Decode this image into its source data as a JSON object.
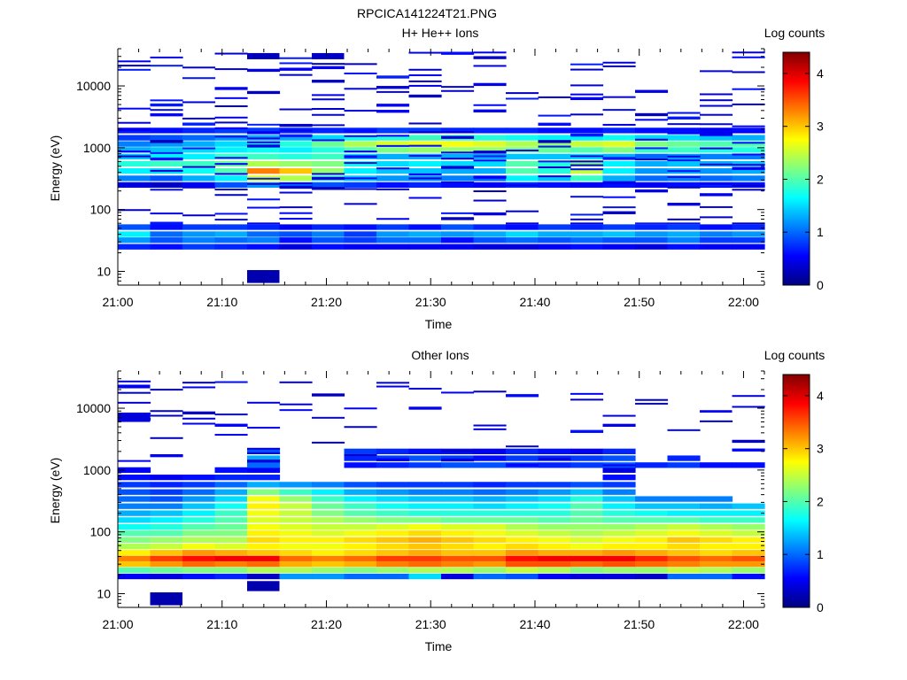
{
  "figure_title": "RPCICA141224T21.PNG",
  "colormap_stops": [
    "#000080",
    "#0000ff",
    "#0080ff",
    "#00ffff",
    "#80ff80",
    "#ffff00",
    "#ff8000",
    "#ff0000",
    "#800000"
  ],
  "chart_data": [
    {
      "type": "heatmap",
      "title": "H+ He++ Ions",
      "xlabel": "Time",
      "ylabel": "Energy (eV)",
      "colorbar_label": "Log counts",
      "x_ticks": [
        "21:00",
        "21:10",
        "21:20",
        "21:30",
        "21:40",
        "21:50",
        "22:00"
      ],
      "y_ticks": [
        "10",
        "100",
        "1000",
        "10000"
      ],
      "colorbar_ticks": [
        "0",
        "1",
        "2",
        "3",
        "4"
      ],
      "y_scale": "log",
      "ylim": [
        6,
        40000
      ],
      "xlim_minutes": [
        0,
        62
      ],
      "clim": [
        0,
        4.4
      ],
      "grid": false,
      "time_bins": 20,
      "bands": [
        {
          "e": 25,
          "v": [
            0.7,
            0.6,
            0.8,
            0.7,
            0.6,
            0.4,
            0.6,
            0.5,
            0.5,
            0.5,
            0.5,
            0.4,
            0.4,
            0.5,
            0.6,
            0.5,
            0.4,
            0.6,
            0.5,
            0.5
          ]
        },
        {
          "e": 32,
          "v": [
            1.2,
            0.9,
            1.1,
            1.0,
            1.1,
            0.6,
            0.9,
            0.8,
            1.0,
            1.0,
            0.6,
            0.9,
            1.0,
            0.9,
            1.0,
            0.9,
            0.9,
            1.1,
            0.8,
            0.8
          ]
        },
        {
          "e": 40,
          "v": [
            1.6,
            1.0,
            1.2,
            1.3,
            1.0,
            0.9,
            1.1,
            0.8,
            1.2,
            1.3,
            1.2,
            1.3,
            1.5,
            1.3,
            1.3,
            1.4,
            1.2,
            1.3,
            1.1,
            1.2
          ]
        },
        {
          "e": 52,
          "v": [
            0.9,
            0.6,
            0.8,
            0.8,
            0.7,
            0.5,
            0.7,
            0.6,
            0.8,
            0.6,
            0.9,
            0.7,
            0.6,
            0.8,
            0.7,
            0.8,
            0.7,
            0.8,
            0.6,
            0.7
          ]
        },
        {
          "e": 250,
          "v": [
            0.4,
            0.3,
            0.5,
            0.9,
            1.2,
            1.0,
            0.9,
            0.8,
            0.6,
            0.7,
            0.6,
            0.5,
            0.7,
            0.6,
            0.5,
            0.6,
            0.5,
            0.6,
            0.5,
            0.6
          ]
        },
        {
          "e": 320,
          "v": [
            1.1,
            0.9,
            1.3,
            1.6,
            2.6,
            2.4,
            1.9,
            1.4,
            1.2,
            1.2,
            1.1,
            1.0,
            1.6,
            1.4,
            1.9,
            1.3,
            1.0,
            1.1,
            1.0,
            1.1
          ]
        },
        {
          "e": 420,
          "v": [
            1.6,
            1.5,
            1.7,
            2.0,
            3.3,
            3.0,
            2.3,
            1.6,
            1.4,
            1.4,
            1.3,
            1.3,
            2.0,
            1.8,
            2.5,
            1.6,
            1.2,
            1.3,
            1.2,
            1.3
          ]
        },
        {
          "e": 550,
          "v": [
            1.8,
            1.9,
            1.9,
            2.1,
            2.4,
            2.3,
            2.2,
            1.7,
            1.5,
            1.6,
            1.5,
            1.5,
            2.0,
            1.8,
            2.2,
            1.6,
            1.3,
            1.4,
            1.3,
            1.4
          ]
        },
        {
          "e": 720,
          "v": [
            1.4,
            1.6,
            1.6,
            1.9,
            1.9,
            1.8,
            1.9,
            1.5,
            1.3,
            1.3,
            1.3,
            1.3,
            1.4,
            1.4,
            1.5,
            1.3,
            1.0,
            1.2,
            1.1,
            1.1
          ]
        },
        {
          "e": 920,
          "v": [
            1.3,
            1.4,
            1.5,
            1.6,
            1.7,
            1.6,
            1.8,
            2.0,
            2.2,
            2.3,
            2.3,
            2.3,
            2.2,
            2.1,
            2.0,
            2.2,
            1.9,
            1.9,
            1.8,
            1.8
          ]
        },
        {
          "e": 1150,
          "v": [
            1.1,
            1.2,
            1.3,
            1.5,
            1.6,
            1.8,
            2.1,
            2.4,
            2.6,
            2.7,
            2.7,
            2.6,
            2.4,
            2.3,
            2.5,
            2.6,
            2.2,
            2.1,
            2.0,
            2.0
          ]
        },
        {
          "e": 1450,
          "v": [
            0.8,
            0.9,
            1.0,
            1.2,
            1.3,
            1.3,
            1.5,
            1.7,
            1.8,
            1.9,
            1.9,
            1.8,
            1.7,
            1.6,
            1.6,
            1.7,
            1.5,
            1.5,
            1.4,
            1.3
          ]
        },
        {
          "e": 1900,
          "v": [
            0.5,
            0.6,
            0.7,
            0.8,
            0.8,
            0.7,
            0.7,
            0.7,
            0.8,
            0.8,
            0.7,
            0.7,
            0.7,
            0.6,
            0.6,
            0.7,
            0.6,
            0.6,
            0.5,
            0.6
          ]
        }
      ],
      "sparse_min": [
        0.25,
        0.7
      ],
      "sparse_density": 0.3,
      "sparse_emin": 60,
      "sparse_emax": 35000,
      "sparse_seed": 7,
      "extras": [
        {
          "tbin": 4,
          "e1": 6.5,
          "e2": 10.5,
          "v": 0.2
        },
        {
          "tbin": 4,
          "e1": 27000,
          "e2": 34000,
          "v": 0.25
        },
        {
          "tbin": 6,
          "e1": 27000,
          "e2": 34000,
          "v": 0.3
        }
      ]
    },
    {
      "type": "heatmap",
      "title": "Other Ions",
      "xlabel": "Time",
      "ylabel": "Energy (eV)",
      "colorbar_label": "Log counts",
      "x_ticks": [
        "21:00",
        "21:10",
        "21:20",
        "21:30",
        "21:40",
        "21:50",
        "22:00"
      ],
      "y_ticks": [
        "10",
        "100",
        "1000",
        "10000"
      ],
      "colorbar_ticks": [
        "0",
        "1",
        "2",
        "3",
        "4"
      ],
      "y_scale": "log",
      "ylim": [
        6,
        40000
      ],
      "xlim_minutes": [
        0,
        62
      ],
      "clim": [
        0,
        4.4
      ],
      "grid": false,
      "time_bins": 20,
      "bands": [
        {
          "e": 19,
          "v": [
            0.5,
            0.4,
            0.6,
            0.7,
            0.3,
            1.2,
            1.2,
            1.0,
            1.0,
            1.5,
            0.4,
            1.0,
            0.9,
            0.5,
            0.4,
            0.4,
            0.3,
            1.0,
            1.0,
            0.6
          ]
        },
        {
          "e": 24,
          "v": [
            2.0,
            2.1,
            2.2,
            2.2,
            2.4,
            2.4,
            2.3,
            2.2,
            2.3,
            2.4,
            2.4,
            2.3,
            2.5,
            2.4,
            2.2,
            2.3,
            2.3,
            2.5,
            2.4,
            2.3
          ]
        },
        {
          "e": 30,
          "v": [
            3.0,
            3.2,
            3.4,
            3.3,
            3.4,
            3.1,
            3.0,
            3.1,
            3.3,
            3.4,
            3.3,
            3.2,
            3.5,
            3.5,
            3.4,
            3.5,
            3.4,
            3.3,
            3.2,
            3.2
          ]
        },
        {
          "e": 37,
          "v": [
            3.3,
            3.6,
            3.8,
            3.9,
            3.9,
            3.4,
            3.3,
            3.4,
            3.6,
            3.6,
            3.5,
            3.5,
            3.8,
            3.9,
            3.9,
            3.9,
            3.7,
            3.5,
            3.4,
            3.5
          ]
        },
        {
          "e": 46,
          "v": [
            2.8,
            3.0,
            3.2,
            3.1,
            3.0,
            2.9,
            2.8,
            2.9,
            3.0,
            3.1,
            3.0,
            3.0,
            3.2,
            3.1,
            3.1,
            3.2,
            3.1,
            3.0,
            2.9,
            3.0
          ]
        },
        {
          "e": 58,
          "v": [
            2.4,
            2.5,
            2.7,
            2.6,
            2.8,
            2.7,
            2.7,
            2.8,
            2.9,
            3.0,
            2.9,
            2.8,
            2.9,
            2.8,
            2.7,
            2.8,
            2.8,
            2.9,
            2.8,
            2.8
          ]
        },
        {
          "e": 74,
          "v": [
            2.2,
            2.3,
            2.4,
            2.4,
            2.9,
            2.8,
            2.8,
            2.9,
            3.0,
            3.1,
            3.0,
            2.9,
            2.8,
            2.7,
            2.6,
            2.7,
            2.8,
            3.0,
            2.9,
            2.8
          ]
        },
        {
          "e": 95,
          "v": [
            2.0,
            2.0,
            2.2,
            2.2,
            2.8,
            2.7,
            2.6,
            2.7,
            2.8,
            2.9,
            2.8,
            2.7,
            2.6,
            2.5,
            2.4,
            2.5,
            2.6,
            2.7,
            2.6,
            2.5
          ]
        },
        {
          "e": 120,
          "v": [
            1.7,
            1.8,
            2.0,
            2.1,
            2.7,
            2.6,
            2.5,
            2.5,
            2.6,
            2.7,
            2.6,
            2.6,
            2.4,
            2.3,
            2.3,
            2.3,
            2.4,
            2.5,
            2.4,
            2.3
          ]
        },
        {
          "e": 155,
          "v": [
            1.5,
            1.6,
            1.8,
            2.0,
            2.6,
            2.5,
            2.4,
            2.3,
            2.2,
            2.2,
            2.1,
            2.1,
            2.1,
            2.0,
            2.1,
            2.0,
            2.0,
            2.0,
            1.9,
            1.9
          ]
        },
        {
          "e": 200,
          "v": [
            1.3,
            1.4,
            1.6,
            1.9,
            2.7,
            2.5,
            2.2,
            2.0,
            1.9,
            1.8,
            1.8,
            1.8,
            1.8,
            1.8,
            2.0,
            1.8,
            1.7,
            1.6,
            1.6,
            1.6
          ]
        },
        {
          "e": 260,
          "v": [
            1.1,
            1.1,
            1.4,
            1.7,
            2.8,
            2.5,
            2.1,
            1.9,
            1.7,
            1.6,
            1.6,
            1.5,
            1.6,
            1.7,
            2.0,
            1.6,
            1.4,
            1.4,
            1.3,
            1.4
          ]
        },
        {
          "e": 340,
          "v": [
            1.0,
            0.9,
            1.2,
            1.5,
            2.7,
            2.3,
            1.9,
            1.6,
            1.5,
            1.4,
            1.4,
            1.3,
            1.4,
            1.5,
            1.8,
            1.4,
            1.1,
            1.1,
            1.1,
            0.0
          ]
        },
        {
          "e": 440,
          "v": [
            0.9,
            0.8,
            1.0,
            1.3,
            2.2,
            1.9,
            1.6,
            1.3,
            1.2,
            1.1,
            1.1,
            1.0,
            1.1,
            1.2,
            1.4,
            1.1,
            0.0,
            0.0,
            0.0,
            0.0
          ]
        },
        {
          "e": 580,
          "v": [
            0.8,
            0.7,
            0.8,
            1.0,
            1.3,
            1.2,
            1.1,
            0.9,
            0.8,
            0.8,
            0.8,
            0.7,
            0.8,
            0.8,
            0.9,
            0.8,
            0.0,
            0.0,
            0.0,
            0.0
          ]
        },
        {
          "e": 760,
          "v": [
            0.6,
            0.5,
            0.6,
            0.7,
            0.7,
            0.0,
            0.0,
            0.0,
            0.0,
            0.0,
            0.0,
            0.0,
            0.0,
            0.0,
            0.0,
            0.6,
            0.0,
            0.0,
            0.0,
            0.0
          ]
        },
        {
          "e": 1000,
          "v": [
            0.5,
            0.0,
            0.0,
            0.6,
            0.5,
            0.0,
            0.0,
            0.0,
            0.0,
            0.0,
            0.0,
            0.0,
            0.0,
            0.0,
            0.0,
            0.4,
            0.0,
            0.0,
            0.0,
            0.0
          ]
        },
        {
          "e": 1200,
          "v": [
            0.0,
            0.0,
            0.0,
            0.0,
            1.0,
            0.0,
            0.0,
            0.6,
            0.7,
            0.8,
            0.9,
            0.9,
            0.8,
            0.7,
            0.8,
            0.9,
            0.7,
            0.8,
            0.6,
            0.6
          ]
        },
        {
          "e": 1550,
          "v": [
            0.0,
            0.0,
            0.0,
            0.0,
            1.3,
            0.0,
            0.0,
            0.7,
            0.8,
            0.9,
            0.8,
            0.6,
            0.8,
            0.7,
            0.8,
            0.9,
            0.0,
            0.7,
            0.0,
            0.0
          ]
        },
        {
          "e": 2000,
          "v": [
            0.0,
            0.0,
            0.0,
            0.0,
            0.9,
            0.0,
            0.0,
            0.8,
            0.7,
            0.6,
            0.6,
            0.5,
            0.7,
            0.6,
            0.5,
            0.7,
            0.0,
            0.0,
            0.0,
            0.0
          ]
        }
      ],
      "sparse_min": [
        0.25,
        0.6
      ],
      "sparse_density": 0.18,
      "sparse_emin": 1200,
      "sparse_emax": 30000,
      "sparse_seed": 11,
      "extras": [
        {
          "tbin": 1,
          "e1": 6.5,
          "e2": 10.5,
          "v": 0.2
        },
        {
          "tbin": 4,
          "e1": 11,
          "e2": 16,
          "v": 0.2
        },
        {
          "tbin": 0,
          "e1": 6000,
          "e2": 8500,
          "v": 0.4
        },
        {
          "tbin": 0,
          "e1": 21000,
          "e2": 24000,
          "v": 0.5
        },
        {
          "tbin": 18,
          "e1": 8500,
          "e2": 9300,
          "v": 0.5
        }
      ]
    }
  ]
}
